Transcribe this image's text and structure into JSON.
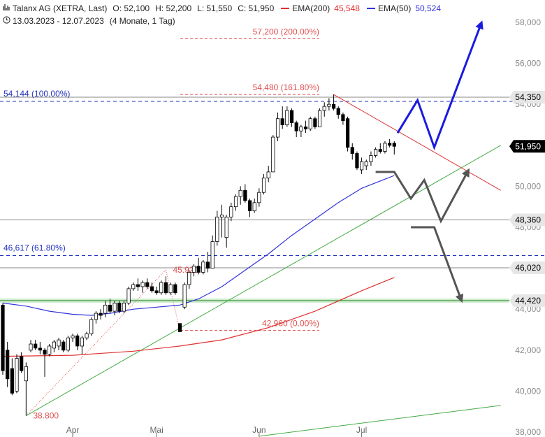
{
  "header": {
    "chart_icon": "bar-chart-icon",
    "clock_icon": "clock-icon",
    "instrument": "Talanx AG (XETRA, Last)",
    "open": "O: 52,100",
    "high": "H: 52,200",
    "low": "L: 51,550",
    "close": "C: 51,950",
    "ema200_label": "EMA(200)",
    "ema200_value": "45,548",
    "ema50_label": "EMA(50)",
    "ema50_value": "50,524",
    "date_range": "13.03.2023 - 12.07.2023",
    "period": "(4 Monate, 1 Tag)"
  },
  "colors": {
    "ema200": "#e03030",
    "ema50": "#3333dd",
    "trend_green": "#44aa44",
    "resistance_red": "#dd3333",
    "fib_red": "#e05050",
    "fib_blue": "#2233bb",
    "arrow_blue": "#1a1adf",
    "arrow_grey": "#555555",
    "support_zone": "#9ed89e"
  },
  "chart_data": {
    "type": "candlestick",
    "ylim": [
      38000,
      59000
    ],
    "y_ticks": [
      {
        "value": 38000,
        "label": "38,000"
      },
      {
        "value": 40000,
        "label": "40,000"
      },
      {
        "value": 42000,
        "label": "42,000"
      },
      {
        "value": 44000,
        "label": "44,000"
      },
      {
        "value": 46000,
        "label": "46,000"
      },
      {
        "value": 48000,
        "label": "48,000"
      },
      {
        "value": 50000,
        "label": "50,000"
      },
      {
        "value": 52000,
        "label": "52,000"
      },
      {
        "value": 54000,
        "label": "54,000"
      },
      {
        "value": 56000,
        "label": "56,000"
      },
      {
        "value": 58000,
        "label": "58,000"
      }
    ],
    "x_ticks": [
      {
        "date": "2023-04-03",
        "label": "Apr"
      },
      {
        "date": "2023-05-02",
        "label": "Mai"
      },
      {
        "date": "2023-06-01",
        "label": "Jun"
      },
      {
        "date": "2023-07-03",
        "label": "Jul"
      }
    ],
    "x_range": [
      "2023-03-13",
      "2023-08-13"
    ],
    "candles": [
      {
        "d": "2023-03-13",
        "o": 44200,
        "h": 44300,
        "l": 40800,
        "c": 41000
      },
      {
        "d": "2023-03-14",
        "o": 42000,
        "h": 42400,
        "l": 40200,
        "c": 40600
      },
      {
        "d": "2023-03-15",
        "o": 41100,
        "h": 41600,
        "l": 39800,
        "c": 39900
      },
      {
        "d": "2023-03-16",
        "o": 40000,
        "h": 41800,
        "l": 39900,
        "c": 41600
      },
      {
        "d": "2023-03-17",
        "o": 41700,
        "h": 41900,
        "l": 40900,
        "c": 41000
      },
      {
        "d": "2023-03-20",
        "o": 40500,
        "h": 41400,
        "l": 38800,
        "c": 41200
      },
      {
        "d": "2023-03-21",
        "o": 42000,
        "h": 42500,
        "l": 41900,
        "c": 42300
      },
      {
        "d": "2023-03-22",
        "o": 42300,
        "h": 42500,
        "l": 42000,
        "c": 42100
      },
      {
        "d": "2023-03-23",
        "o": 42100,
        "h": 42400,
        "l": 41800,
        "c": 42000
      },
      {
        "d": "2023-03-24",
        "o": 42000,
        "h": 42100,
        "l": 40700,
        "c": 41800
      },
      {
        "d": "2023-03-27",
        "o": 41800,
        "h": 42300,
        "l": 41700,
        "c": 42200
      },
      {
        "d": "2023-03-28",
        "o": 42100,
        "h": 42500,
        "l": 41900,
        "c": 42400
      },
      {
        "d": "2023-03-29",
        "o": 42200,
        "h": 42600,
        "l": 42000,
        "c": 42500
      },
      {
        "d": "2023-03-30",
        "o": 42400,
        "h": 42500,
        "l": 41900,
        "c": 42000
      },
      {
        "d": "2023-03-31",
        "o": 42000,
        "h": 42700,
        "l": 41900,
        "c": 42600
      },
      {
        "d": "2023-04-03",
        "o": 42600,
        "h": 42800,
        "l": 42400,
        "c": 42700
      },
      {
        "d": "2023-04-04",
        "o": 42700,
        "h": 42800,
        "l": 42000,
        "c": 42200
      },
      {
        "d": "2023-04-05",
        "o": 42200,
        "h": 42700,
        "l": 41800,
        "c": 42600
      },
      {
        "d": "2023-04-06",
        "o": 42600,
        "h": 42900,
        "l": 42500,
        "c": 42800
      },
      {
        "d": "2023-04-11",
        "o": 42800,
        "h": 43600,
        "l": 42700,
        "c": 43500
      },
      {
        "d": "2023-04-12",
        "o": 43500,
        "h": 43900,
        "l": 43300,
        "c": 43800
      },
      {
        "d": "2023-04-13",
        "o": 43800,
        "h": 44000,
        "l": 43500,
        "c": 43700
      },
      {
        "d": "2023-04-14",
        "o": 43800,
        "h": 44400,
        "l": 43600,
        "c": 44200
      },
      {
        "d": "2023-04-17",
        "o": 44200,
        "h": 44500,
        "l": 43800,
        "c": 43900
      },
      {
        "d": "2023-04-18",
        "o": 43900,
        "h": 44400,
        "l": 43700,
        "c": 44300
      },
      {
        "d": "2023-04-19",
        "o": 44300,
        "h": 44400,
        "l": 43800,
        "c": 43900
      },
      {
        "d": "2023-04-20",
        "o": 43900,
        "h": 44400,
        "l": 43800,
        "c": 44300
      },
      {
        "d": "2023-04-21",
        "o": 44300,
        "h": 45100,
        "l": 44200,
        "c": 45000
      },
      {
        "d": "2023-04-24",
        "o": 45000,
        "h": 45300,
        "l": 44900,
        "c": 45200
      },
      {
        "d": "2023-04-25",
        "o": 45200,
        "h": 45500,
        "l": 44900,
        "c": 45100
      },
      {
        "d": "2023-04-26",
        "o": 45100,
        "h": 45400,
        "l": 44800,
        "c": 45300
      },
      {
        "d": "2023-04-27",
        "o": 45300,
        "h": 45500,
        "l": 45000,
        "c": 45100
      },
      {
        "d": "2023-04-28",
        "o": 45100,
        "h": 45300,
        "l": 44800,
        "c": 44900
      },
      {
        "d": "2023-05-02",
        "o": 44900,
        "h": 45100,
        "l": 44700,
        "c": 44800
      },
      {
        "d": "2023-05-03",
        "o": 44800,
        "h": 45400,
        "l": 44700,
        "c": 45300
      },
      {
        "d": "2023-05-04",
        "o": 45300,
        "h": 45600,
        "l": 44700,
        "c": 44800
      },
      {
        "d": "2023-05-05",
        "o": 44800,
        "h": 45300,
        "l": 44700,
        "c": 45200
      },
      {
        "d": "2023-05-08",
        "o": 45200,
        "h": 45300,
        "l": 44700,
        "c": 44800
      },
      {
        "d": "2023-05-09",
        "o": 43300,
        "h": 43300,
        "l": 42900,
        "c": 42900
      },
      {
        "d": "2023-05-10",
        "o": 44100,
        "h": 45300,
        "l": 44000,
        "c": 45200
      },
      {
        "d": "2023-05-11",
        "o": 45200,
        "h": 45900,
        "l": 45000,
        "c": 45800
      },
      {
        "d": "2023-05-12",
        "o": 45800,
        "h": 46200,
        "l": 45600,
        "c": 46100
      },
      {
        "d": "2023-05-15",
        "o": 46100,
        "h": 46500,
        "l": 45700,
        "c": 45800
      },
      {
        "d": "2023-05-16",
        "o": 45800,
        "h": 46400,
        "l": 45700,
        "c": 46300
      },
      {
        "d": "2023-05-17",
        "o": 46300,
        "h": 46800,
        "l": 45800,
        "c": 46000
      },
      {
        "d": "2023-05-18",
        "o": 46000,
        "h": 47600,
        "l": 46000,
        "c": 47300
      },
      {
        "d": "2023-05-19",
        "o": 47300,
        "h": 48800,
        "l": 47100,
        "c": 48500
      },
      {
        "d": "2023-05-22",
        "o": 48500,
        "h": 49100,
        "l": 47500,
        "c": 48600
      },
      {
        "d": "2023-05-23",
        "o": 47500,
        "h": 48600,
        "l": 47000,
        "c": 48500
      },
      {
        "d": "2023-05-24",
        "o": 48500,
        "h": 49200,
        "l": 48300,
        "c": 49000
      },
      {
        "d": "2023-05-25",
        "o": 49000,
        "h": 49600,
        "l": 48800,
        "c": 49500
      },
      {
        "d": "2023-05-26",
        "o": 49500,
        "h": 50000,
        "l": 49100,
        "c": 49800
      },
      {
        "d": "2023-05-29",
        "o": 49800,
        "h": 50100,
        "l": 49200,
        "c": 49300
      },
      {
        "d": "2023-05-30",
        "o": 49300,
        "h": 49400,
        "l": 48500,
        "c": 48800
      },
      {
        "d": "2023-05-31",
        "o": 48800,
        "h": 49400,
        "l": 48700,
        "c": 49200
      },
      {
        "d": "2023-06-01",
        "o": 49200,
        "h": 49900,
        "l": 49000,
        "c": 49700
      },
      {
        "d": "2023-06-02",
        "o": 49700,
        "h": 50600,
        "l": 49600,
        "c": 50400
      },
      {
        "d": "2023-06-05",
        "o": 50400,
        "h": 51000,
        "l": 50200,
        "c": 50700
      },
      {
        "d": "2023-06-06",
        "o": 50700,
        "h": 52500,
        "l": 50700,
        "c": 52400
      },
      {
        "d": "2023-06-07",
        "o": 52400,
        "h": 53600,
        "l": 52200,
        "c": 53300
      },
      {
        "d": "2023-06-08",
        "o": 53300,
        "h": 53900,
        "l": 52800,
        "c": 53000
      },
      {
        "d": "2023-06-09",
        "o": 53000,
        "h": 53900,
        "l": 52900,
        "c": 53700
      },
      {
        "d": "2023-06-12",
        "o": 53700,
        "h": 53800,
        "l": 52900,
        "c": 53100
      },
      {
        "d": "2023-06-13",
        "o": 53100,
        "h": 53200,
        "l": 52400,
        "c": 52700
      },
      {
        "d": "2023-06-14",
        "o": 52700,
        "h": 53000,
        "l": 52400,
        "c": 52900
      },
      {
        "d": "2023-06-15",
        "o": 52900,
        "h": 53200,
        "l": 52600,
        "c": 52800
      },
      {
        "d": "2023-06-16",
        "o": 52800,
        "h": 53400,
        "l": 52700,
        "c": 53300
      },
      {
        "d": "2023-06-19",
        "o": 53300,
        "h": 53400,
        "l": 52800,
        "c": 52900
      },
      {
        "d": "2023-06-20",
        "o": 52900,
        "h": 53800,
        "l": 52900,
        "c": 53700
      },
      {
        "d": "2023-06-21",
        "o": 53700,
        "h": 54100,
        "l": 53400,
        "c": 53900
      },
      {
        "d": "2023-06-22",
        "o": 53900,
        "h": 54300,
        "l": 53700,
        "c": 54000
      },
      {
        "d": "2023-06-23",
        "o": 54000,
        "h": 54480,
        "l": 53700,
        "c": 53800
      },
      {
        "d": "2023-06-26",
        "o": 53800,
        "h": 53900,
        "l": 53300,
        "c": 53500
      },
      {
        "d": "2023-06-27",
        "o": 53500,
        "h": 53600,
        "l": 53000,
        "c": 53200
      },
      {
        "d": "2023-06-28",
        "o": 53300,
        "h": 53400,
        "l": 51700,
        "c": 51900
      },
      {
        "d": "2023-06-29",
        "o": 51900,
        "h": 52100,
        "l": 51300,
        "c": 51600
      },
      {
        "d": "2023-06-30",
        "o": 51600,
        "h": 51700,
        "l": 50800,
        "c": 50900
      },
      {
        "d": "2023-07-03",
        "o": 50800,
        "h": 51400,
        "l": 50600,
        "c": 51200
      },
      {
        "d": "2023-07-04",
        "o": 51000,
        "h": 51300,
        "l": 50800,
        "c": 51200
      },
      {
        "d": "2023-07-05",
        "o": 51200,
        "h": 51700,
        "l": 51000,
        "c": 51500
      },
      {
        "d": "2023-07-06",
        "o": 51500,
        "h": 51900,
        "l": 51400,
        "c": 51800
      },
      {
        "d": "2023-07-07",
        "o": 51800,
        "h": 52100,
        "l": 51600,
        "c": 51700
      },
      {
        "d": "2023-07-10",
        "o": 51700,
        "h": 52200,
        "l": 51600,
        "c": 52100
      },
      {
        "d": "2023-07-11",
        "o": 52100,
        "h": 52300,
        "l": 51900,
        "c": 52000
      },
      {
        "d": "2023-07-12",
        "o": 52100,
        "h": 52200,
        "l": 51550,
        "c": 51950
      }
    ],
    "ema50": [
      {
        "d": "2023-03-13",
        "v": 44300
      },
      {
        "d": "2023-03-20",
        "v": 44150
      },
      {
        "d": "2023-03-27",
        "v": 43900
      },
      {
        "d": "2023-04-03",
        "v": 43750
      },
      {
        "d": "2023-04-11",
        "v": 43700
      },
      {
        "d": "2023-04-17",
        "v": 43800
      },
      {
        "d": "2023-04-24",
        "v": 44000
      },
      {
        "d": "2023-05-02",
        "v": 44100
      },
      {
        "d": "2023-05-09",
        "v": 44200
      },
      {
        "d": "2023-05-15",
        "v": 44500
      },
      {
        "d": "2023-05-22",
        "v": 45100
      },
      {
        "d": "2023-05-29",
        "v": 45900
      },
      {
        "d": "2023-06-05",
        "v": 46700
      },
      {
        "d": "2023-06-12",
        "v": 47600
      },
      {
        "d": "2023-06-19",
        "v": 48400
      },
      {
        "d": "2023-06-26",
        "v": 49200
      },
      {
        "d": "2023-07-03",
        "v": 49900
      },
      {
        "d": "2023-07-12",
        "v": 50524
      }
    ],
    "ema200": [
      {
        "d": "2023-03-13",
        "v": 41700
      },
      {
        "d": "2023-04-03",
        "v": 41750
      },
      {
        "d": "2023-04-24",
        "v": 41950
      },
      {
        "d": "2023-05-09",
        "v": 42200
      },
      {
        "d": "2023-05-22",
        "v": 42500
      },
      {
        "d": "2023-06-05",
        "v": 43100
      },
      {
        "d": "2023-06-19",
        "v": 43900
      },
      {
        "d": "2023-07-03",
        "v": 44900
      },
      {
        "d": "2023-07-12",
        "v": 45548
      }
    ],
    "horizontal_lines": [
      {
        "name": "level-54350",
        "value": 54350,
        "label": "54,350",
        "style": "solid",
        "color": "#888888"
      },
      {
        "name": "level-48360",
        "value": 48360,
        "label": "48,360",
        "style": "solid",
        "color": "#888888"
      },
      {
        "name": "level-46020",
        "value": 46020,
        "label": "46,020",
        "style": "solid",
        "color": "#888888"
      },
      {
        "name": "level-44420",
        "value": 44420,
        "label": "44,420",
        "style": "solid",
        "color": "#2e8b2e"
      },
      {
        "name": "fib-100",
        "value": 54144,
        "label": "54,144 (100.00%)",
        "style": "dash",
        "color": "#2233bb"
      },
      {
        "name": "fib-61",
        "value": 46617,
        "label": "46,617 (61.80%)",
        "style": "dash",
        "color": "#2233bb"
      }
    ],
    "fib_extension_levels": [
      {
        "name": "fib-200",
        "value": 57200,
        "label": "57,200 (200.00%)",
        "from": "2023-05-11",
        "to": "2023-06-26"
      },
      {
        "name": "fib-161",
        "value": 54480,
        "label": "54,480 (161.80%)",
        "from": "2023-05-11",
        "to": "2023-06-26"
      },
      {
        "name": "fib-0",
        "value": 42960,
        "label": "42,960 (0.00%)",
        "from": "2023-05-11",
        "to": "2023-06-26"
      }
    ],
    "fib_swing_labels": [
      {
        "name": "swing-low-label",
        "d": "2023-03-20",
        "v": 38800,
        "label": "38.800"
      },
      {
        "name": "swing-high-label",
        "d": "2023-05-04",
        "v": 45920,
        "label": "45.920"
      }
    ],
    "trendlines": [
      {
        "name": "green-uptrend",
        "d1": "2023-03-20",
        "v1": 38800,
        "d2": "2023-08-13",
        "v2": 52000,
        "color": "#44aa44"
      },
      {
        "name": "green-lower-trend",
        "d1": "2023-06-01",
        "v1": 37800,
        "d2": "2023-08-13",
        "v2": 39300,
        "color": "#44aa44"
      },
      {
        "name": "red-resistance",
        "d1": "2023-06-23",
        "v1": 54480,
        "d2": "2023-08-13",
        "v2": 49800,
        "color": "#dd3333"
      }
    ],
    "price_tags": [
      {
        "name": "current-price-tag",
        "value": 51950,
        "label": "51,950",
        "bg": "#000000",
        "fg": "#ffffff"
      },
      {
        "name": "tag-54350",
        "value": 54350,
        "label": "54,350",
        "bg": "#e6e6e6",
        "fg": "#000000"
      },
      {
        "name": "tag-48360",
        "value": 48360,
        "label": "48,360",
        "bg": "#e6e6e6",
        "fg": "#000000"
      },
      {
        "name": "tag-46020",
        "value": 46020,
        "label": "46,020",
        "bg": "#e6e6e6",
        "fg": "#000000"
      },
      {
        "name": "tag-44420",
        "value": 44420,
        "label": "44,420",
        "bg": "#e6e6e6",
        "fg": "#000000"
      }
    ],
    "scenario_paths": [
      {
        "name": "bullish-scenario-arrow",
        "color": "#1a1adf",
        "points": [
          {
            "d": "2023-07-13",
            "v": 52600
          },
          {
            "d": "2023-07-19",
            "v": 54200
          },
          {
            "d": "2023-07-24",
            "v": 51900
          },
          {
            "d": "2023-08-07",
            "v": 57900
          }
        ]
      },
      {
        "name": "neutral-scenario-arrow",
        "color": "#555555",
        "points": [
          {
            "d": "2023-07-06",
            "v": 50700
          },
          {
            "d": "2023-07-12",
            "v": 50700
          },
          {
            "d": "2023-07-17",
            "v": 49400
          },
          {
            "d": "2023-07-21",
            "v": 50300
          },
          {
            "d": "2023-07-26",
            "v": 48300
          },
          {
            "d": "2023-08-03",
            "v": 50700
          }
        ]
      },
      {
        "name": "bearish-scenario-arrow",
        "color": "#555555",
        "points": [
          {
            "d": "2023-07-17",
            "v": 48000
          },
          {
            "d": "2023-07-24",
            "v": 48000
          },
          {
            "d": "2023-08-01",
            "v": 44500
          }
        ]
      }
    ]
  }
}
